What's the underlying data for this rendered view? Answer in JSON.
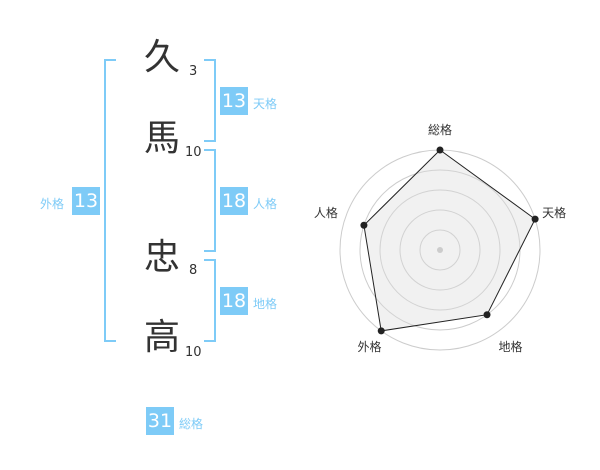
{
  "name": {
    "chars": [
      {
        "char": "久",
        "strokes": "3"
      },
      {
        "char": "馬",
        "strokes": "10"
      },
      {
        "char": "忠",
        "strokes": "8"
      },
      {
        "char": "高",
        "strokes": "10"
      }
    ]
  },
  "kaku": {
    "tenkaku": {
      "value": "13",
      "label": "天格"
    },
    "jinkaku": {
      "value": "18",
      "label": "人格"
    },
    "chikaku": {
      "value": "18",
      "label": "地格"
    },
    "gaikaku": {
      "value": "13",
      "label": "外格"
    },
    "soukaku": {
      "value": "31",
      "label": "総格"
    }
  },
  "colors": {
    "accent": "#7ecbf7",
    "text": "#333333"
  },
  "chart_data": {
    "type": "radar",
    "axes": [
      "総格",
      "天格",
      "地格",
      "外格",
      "人格"
    ],
    "values": [
      5,
      5,
      4,
      5,
      4
    ],
    "range": [
      0,
      5
    ],
    "rings": 5
  }
}
